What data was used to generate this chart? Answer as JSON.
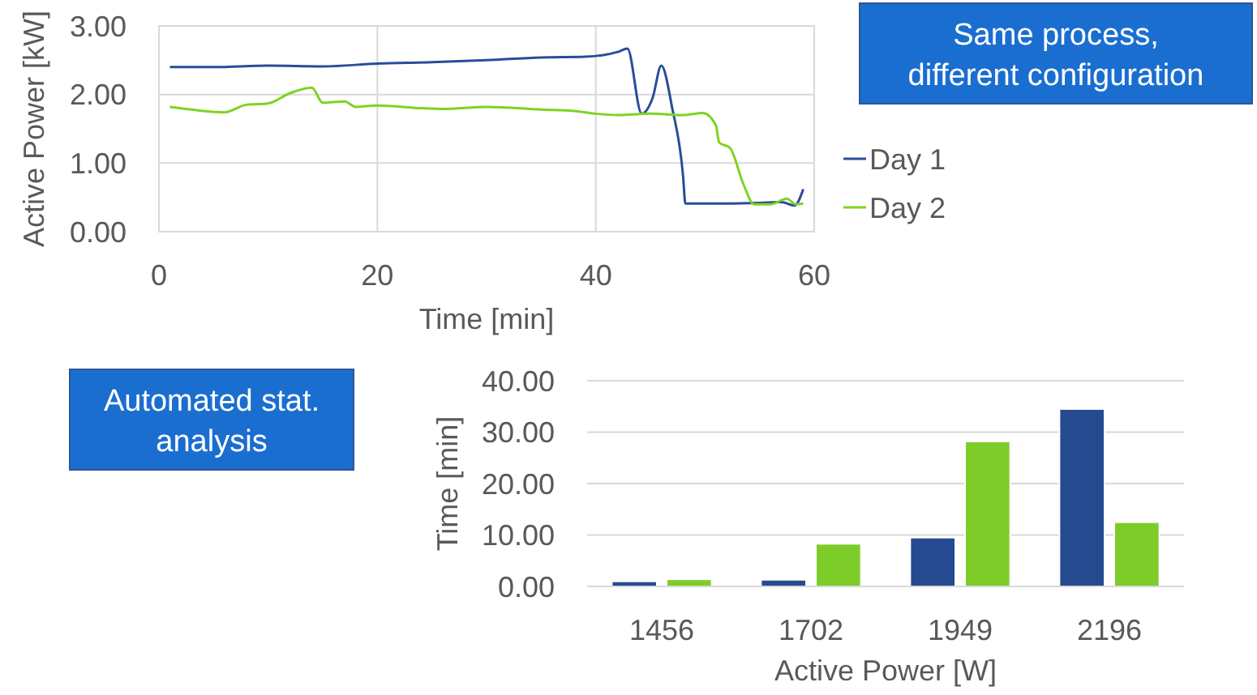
{
  "chart_data": [
    {
      "type": "line",
      "xlabel": "Time [min]",
      "ylabel": "Active Power [kW]",
      "annotations": [
        "Same process,\ndifferent configuration"
      ],
      "xlim": [
        0,
        60
      ],
      "xticks": [
        0,
        20,
        40,
        60
      ],
      "ylim": [
        0,
        3
      ],
      "yticks": [
        {
          "value": 0,
          "label": "0.00"
        },
        {
          "value": 1,
          "label": "1.00"
        },
        {
          "value": 2,
          "label": "2.00"
        },
        {
          "value": 3,
          "label": "3.00"
        }
      ],
      "grid": true,
      "legend": "right",
      "line_style": "solid",
      "series": [
        {
          "name": "Day 1",
          "color": "#2b4c9b",
          "x": [
            1,
            5,
            10,
            15,
            20,
            25,
            30,
            35,
            39,
            42,
            42.9,
            44.2,
            45.2,
            46,
            47,
            48,
            48.2,
            50,
            55,
            57,
            58.2,
            59
          ],
          "values": [
            2.4,
            2.4,
            2.42,
            2.41,
            2.45,
            2.47,
            2.5,
            2.54,
            2.55,
            2.62,
            2.67,
            1.72,
            1.95,
            2.42,
            1.8,
            0.8,
            0.41,
            0.41,
            0.42,
            0.43,
            0.38,
            0.62
          ]
        },
        {
          "name": "Day 2",
          "color": "#7ed321",
          "x": [
            1,
            3,
            6,
            8,
            10,
            12,
            14,
            15,
            17,
            18,
            20,
            24,
            26,
            30,
            35,
            38,
            40,
            42,
            45,
            48,
            49.8,
            51,
            51.3,
            52.3,
            53.5,
            54.5,
            56,
            57.5,
            58.3,
            59
          ],
          "values": [
            1.82,
            1.78,
            1.74,
            1.85,
            1.87,
            2.02,
            2.1,
            1.88,
            1.9,
            1.82,
            1.84,
            1.8,
            1.79,
            1.82,
            1.78,
            1.76,
            1.72,
            1.7,
            1.72,
            1.7,
            1.73,
            1.55,
            1.3,
            1.22,
            0.7,
            0.4,
            0.4,
            0.48,
            0.4,
            0.41
          ]
        }
      ]
    },
    {
      "type": "bar",
      "xlabel": "Active Power [W]",
      "ylabel": "Time [min]",
      "annotations": [
        "Automated stat.\nanalysis"
      ],
      "categories": [
        "1456",
        "1702",
        "1949",
        "2196"
      ],
      "ylim": [
        0,
        40
      ],
      "yticks": [
        {
          "value": 0,
          "label": "0.00"
        },
        {
          "value": 10,
          "label": "10.00"
        },
        {
          "value": 20,
          "label": "20.00"
        },
        {
          "value": 30,
          "label": "30.00"
        },
        {
          "value": 40,
          "label": "40.00"
        }
      ],
      "grid": "y",
      "series": [
        {
          "color": "#264a8f",
          "values": [
            1.0,
            1.3,
            9.5,
            34.5
          ]
        },
        {
          "color": "#7ecc2a",
          "values": [
            1.4,
            8.3,
            28.2,
            12.5
          ]
        }
      ]
    }
  ]
}
